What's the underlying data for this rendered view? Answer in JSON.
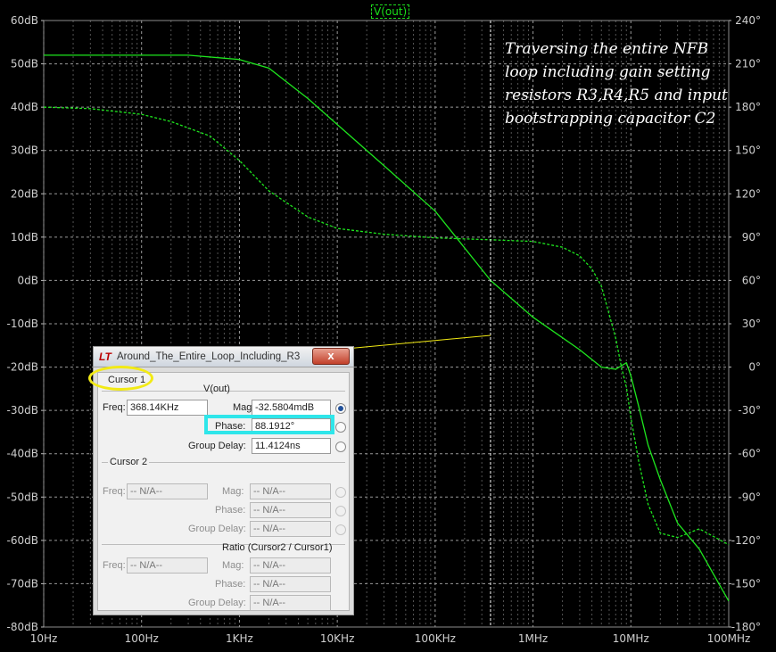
{
  "title": "V(out)",
  "annotation": [
    "Traversing the entire NFB",
    "loop including gain setting",
    "resistors R3,R4,R5 and input",
    "bootstrapping capacitor C2"
  ],
  "colors": {
    "background": "#000000",
    "trace": "#1ee61e",
    "grid": "#9a9a9a",
    "cursor": "#ffffff",
    "cursor_link": "#f2ea14",
    "highlight_cyan": "#2ee6ea",
    "highlight_yellow": "#f2ea14"
  },
  "chart_data": {
    "type": "line",
    "title": "V(out)",
    "xscale": "log",
    "xlim": [
      10,
      100000000
    ],
    "ylim_left": [
      -80,
      60
    ],
    "ylim_right": [
      -180,
      240
    ],
    "x_ticks": [
      "10Hz",
      "100Hz",
      "1KHz",
      "10KHz",
      "100KHz",
      "1MHz",
      "10MHz",
      "100MHz"
    ],
    "y_ticks_left": [
      "60dB",
      "50dB",
      "40dB",
      "30dB",
      "20dB",
      "10dB",
      "0dB",
      "-10dB",
      "-20dB",
      "-30dB",
      "-40dB",
      "-50dB",
      "-60dB",
      "-70dB",
      "-80dB"
    ],
    "y_ticks_right": [
      "240°",
      "210°",
      "180°",
      "150°",
      "120°",
      "90°",
      "60°",
      "30°",
      "0°",
      "-30°",
      "-60°",
      "-90°",
      "-120°",
      "-150°",
      "-180°"
    ],
    "grid": true,
    "cursor_x": 368140,
    "series": [
      {
        "name": "magnitude",
        "axis": "left",
        "style": "solid",
        "x": [
          10,
          100,
          300,
          1000,
          2000,
          5000,
          10000,
          30000,
          100000,
          368140,
          1000000,
          3000000,
          5000000,
          7000000,
          9000000,
          10000000,
          12000000,
          15000000,
          20000000,
          30000000,
          50000000,
          100000000
        ],
        "y": [
          52,
          52,
          52,
          51,
          49,
          42,
          36,
          26.5,
          16,
          0,
          -8.5,
          -16,
          -20,
          -20.5,
          -19,
          -22,
          -29,
          -38,
          -46,
          -56,
          -62,
          -74
        ]
      },
      {
        "name": "phase",
        "axis": "right",
        "style": "dashed",
        "x": [
          10,
          30,
          100,
          200,
          500,
          1000,
          2000,
          5000,
          10000,
          30000,
          100000,
          368140,
          1000000,
          2000000,
          3000000,
          4000000,
          5000000,
          7000000,
          8000000,
          9000000,
          10000000,
          12000000,
          15000000,
          20000000,
          30000000,
          50000000,
          100000000
        ],
        "y": [
          180,
          179,
          175,
          170,
          160,
          143,
          122,
          104,
          96,
          92,
          89.5,
          88.2,
          87,
          83,
          77,
          68,
          56,
          20,
          0,
          -14,
          -35,
          -65,
          -95,
          -115,
          -118,
          -112,
          -123
        ]
      }
    ]
  },
  "dialog": {
    "logo": "LT",
    "title": "Around_The_Entire_Loop_Including_R3",
    "close_label": "x",
    "cursor1": {
      "group_label": "Cursor 1",
      "trace_label": "V(out)",
      "freq_label": "Freq:",
      "freq_value": "368.14KHz",
      "mag_label": "Mag:",
      "mag_value": "-32.5804mdB",
      "phase_label": "Phase:",
      "phase_value": "88.1912°",
      "group_delay_label": "Group Delay:",
      "group_delay_value": "11.4124ns"
    },
    "cursor2": {
      "group_label": "Cursor 2",
      "freq_label": "Freq:",
      "freq_value": "-- N/A--",
      "mag_label": "Mag:",
      "mag_value": "-- N/A--",
      "phase_label": "Phase:",
      "phase_value": "-- N/A--",
      "group_delay_label": "Group Delay:",
      "group_delay_value": "-- N/A--"
    },
    "ratio": {
      "group_label": "Ratio (Cursor2 / Cursor1)",
      "freq_label": "Freq:",
      "freq_value": "-- N/A--",
      "mag_label": "Mag:",
      "mag_value": "-- N/A--",
      "phase_label": "Phase:",
      "phase_value": "-- N/A--",
      "group_delay_label": "Group Delay:",
      "group_delay_value": "-- N/A--"
    }
  }
}
